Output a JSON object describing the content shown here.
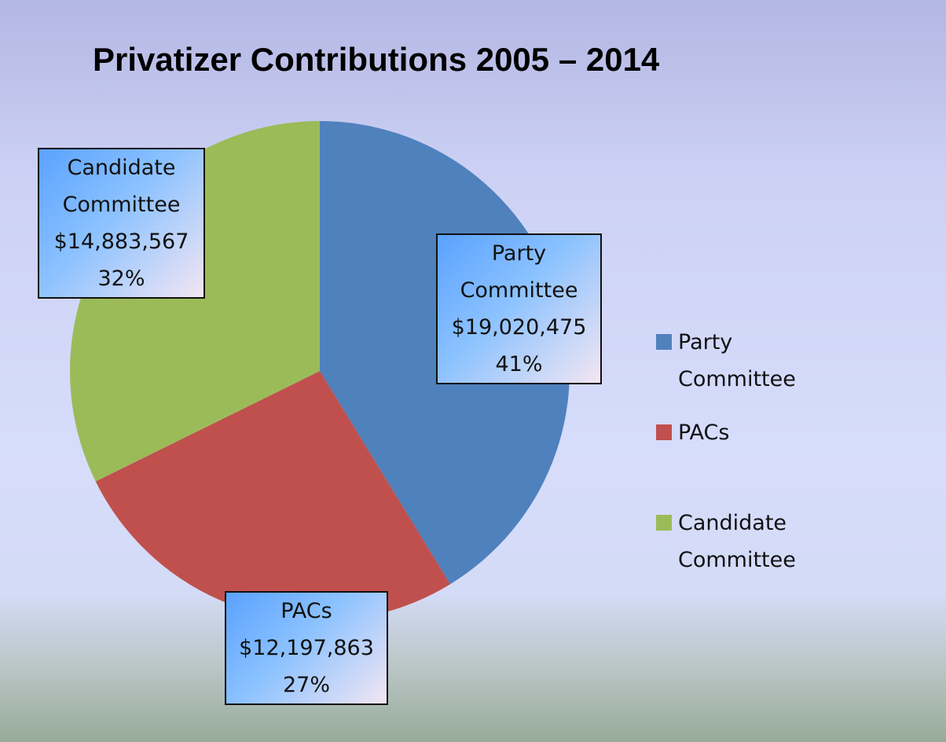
{
  "chart_data": {
    "type": "pie",
    "title": "Privatizer Contributions 2005 – 2014",
    "categories": [
      "Party Committee",
      "PACs",
      "Candidate Committee"
    ],
    "values": [
      19020475,
      12197863,
      14883567
    ],
    "value_labels": [
      "$19,020,475",
      "$12,197,863",
      "$14,883,567"
    ],
    "percent_labels": [
      "41%",
      "27%",
      "32%"
    ],
    "colors": [
      "#4f81bd",
      "#c0504d",
      "#9bbb59"
    ],
    "legend": "right"
  }
}
